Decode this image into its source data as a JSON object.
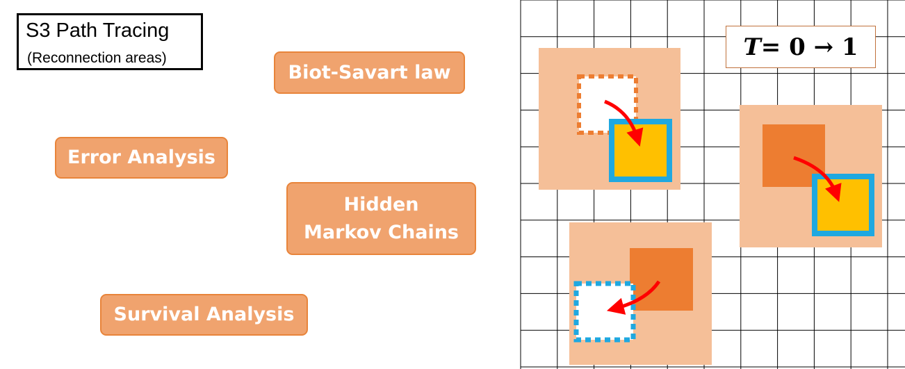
{
  "header": {
    "title": "S3 Path Tracing",
    "subtitle": "(Reconnection areas)"
  },
  "topics": {
    "biot_savart": "Biot-Savart law",
    "error_analysis": "Error Analysis",
    "hidden_line1": "Hidden",
    "hidden_line2": "Markov Chains",
    "survival": "Survival Analysis"
  },
  "equation": {
    "variable": "T",
    "expression": " = 0 → 1"
  },
  "colors": {
    "topic_fill": "#f0a36e",
    "topic_border": "#e8843a",
    "region_fill": "#f5bf98",
    "source_fill": "#ed7d31",
    "target_fill": "#ffc000",
    "target_border": "#1fa8e0",
    "arrow": "#ff0000",
    "grid_line": "#000000"
  }
}
